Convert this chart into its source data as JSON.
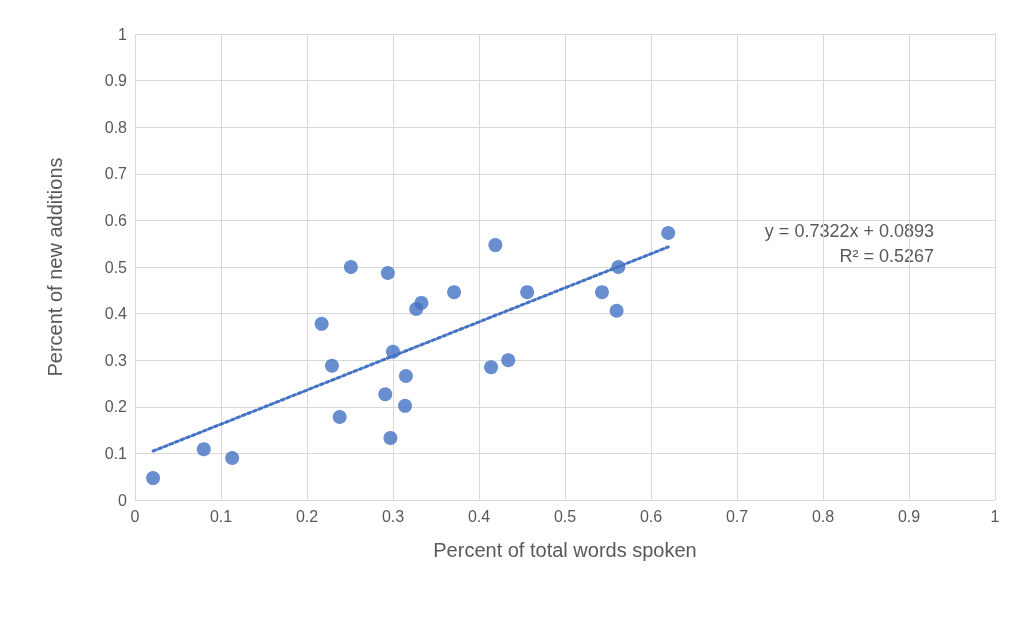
{
  "chart_data": {
    "type": "scatter",
    "xlabel": "Percent of total words spoken",
    "ylabel": "Percent of new additions",
    "xlim": [
      0,
      1
    ],
    "xticks": [
      0,
      0.1,
      0.2,
      0.3,
      0.4,
      0.5,
      0.6,
      0.7,
      0.8,
      0.9,
      1
    ],
    "ylim": [
      0,
      1
    ],
    "yticks": [
      0,
      0.1,
      0.2,
      0.3,
      0.4,
      0.5,
      0.6,
      0.7,
      0.8,
      0.9,
      1
    ],
    "grid": true,
    "marker": "circle",
    "series": [
      {
        "color": "#4472c4",
        "x": [
          0.021,
          0.08,
          0.113,
          0.217,
          0.229,
          0.238,
          0.251,
          0.291,
          0.294,
          0.297,
          0.3,
          0.314,
          0.315,
          0.327,
          0.333,
          0.371,
          0.414,
          0.419,
          0.434,
          0.456,
          0.543,
          0.56,
          0.562,
          0.62
        ],
        "values": [
          0.047,
          0.109,
          0.09,
          0.378,
          0.288,
          0.178,
          0.5,
          0.227,
          0.487,
          0.133,
          0.318,
          0.202,
          0.266,
          0.41,
          0.423,
          0.446,
          0.285,
          0.547,
          0.3,
          0.446,
          0.446,
          0.406,
          0.5,
          0.573
        ]
      },
      {
        "type": "line",
        "color": "#4472c4",
        "line_style": "dotted",
        "marker": "none",
        "x": [
          0.021,
          0.62
        ],
        "values": [
          0.105,
          0.543
        ]
      }
    ],
    "annotations": [
      "y = 0.7322x + 0.0893",
      "R² = 0.5267"
    ]
  }
}
